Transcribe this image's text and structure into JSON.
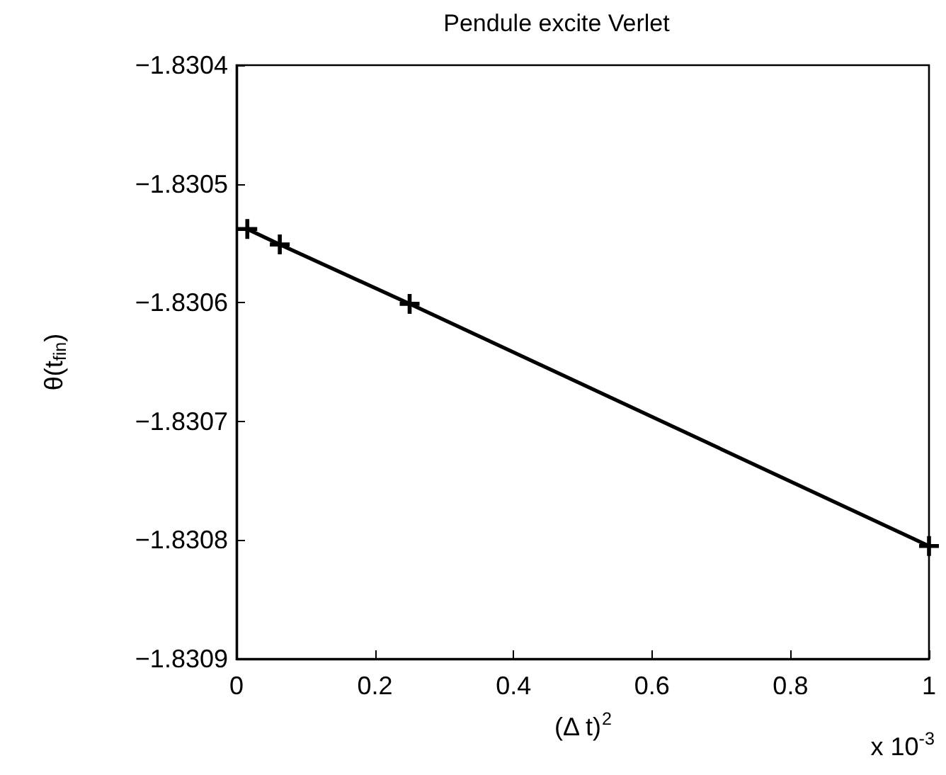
{
  "chart_data": {
    "type": "line",
    "title": "Pendule excite Verlet",
    "xlabel": "(Δ t)$^{2}$",
    "ylabel": "θ(t$_{fin}$)",
    "x": [
      0.015625,
      0.0625,
      0.25,
      1
    ],
    "series": [
      {
        "color": "#000000",
        "values": [
          -1.830538,
          -1.830551,
          -1.830601,
          -1.830805
        ]
      }
    ],
    "marker": "cross",
    "line_style": "solid",
    "xlim": [
      0,
      1
    ],
    "xticks": [
      0,
      0.2,
      0.4,
      0.6,
      0.8,
      1
    ],
    "ylim": [
      -1.8309,
      -1.8304
    ],
    "yticks": [
      -1.8309,
      -1.8308,
      -1.8307,
      -1.8306,
      -1.8305,
      -1.8304
    ],
    "annotations": [
      "x 10$^{-3}$"
    ]
  }
}
